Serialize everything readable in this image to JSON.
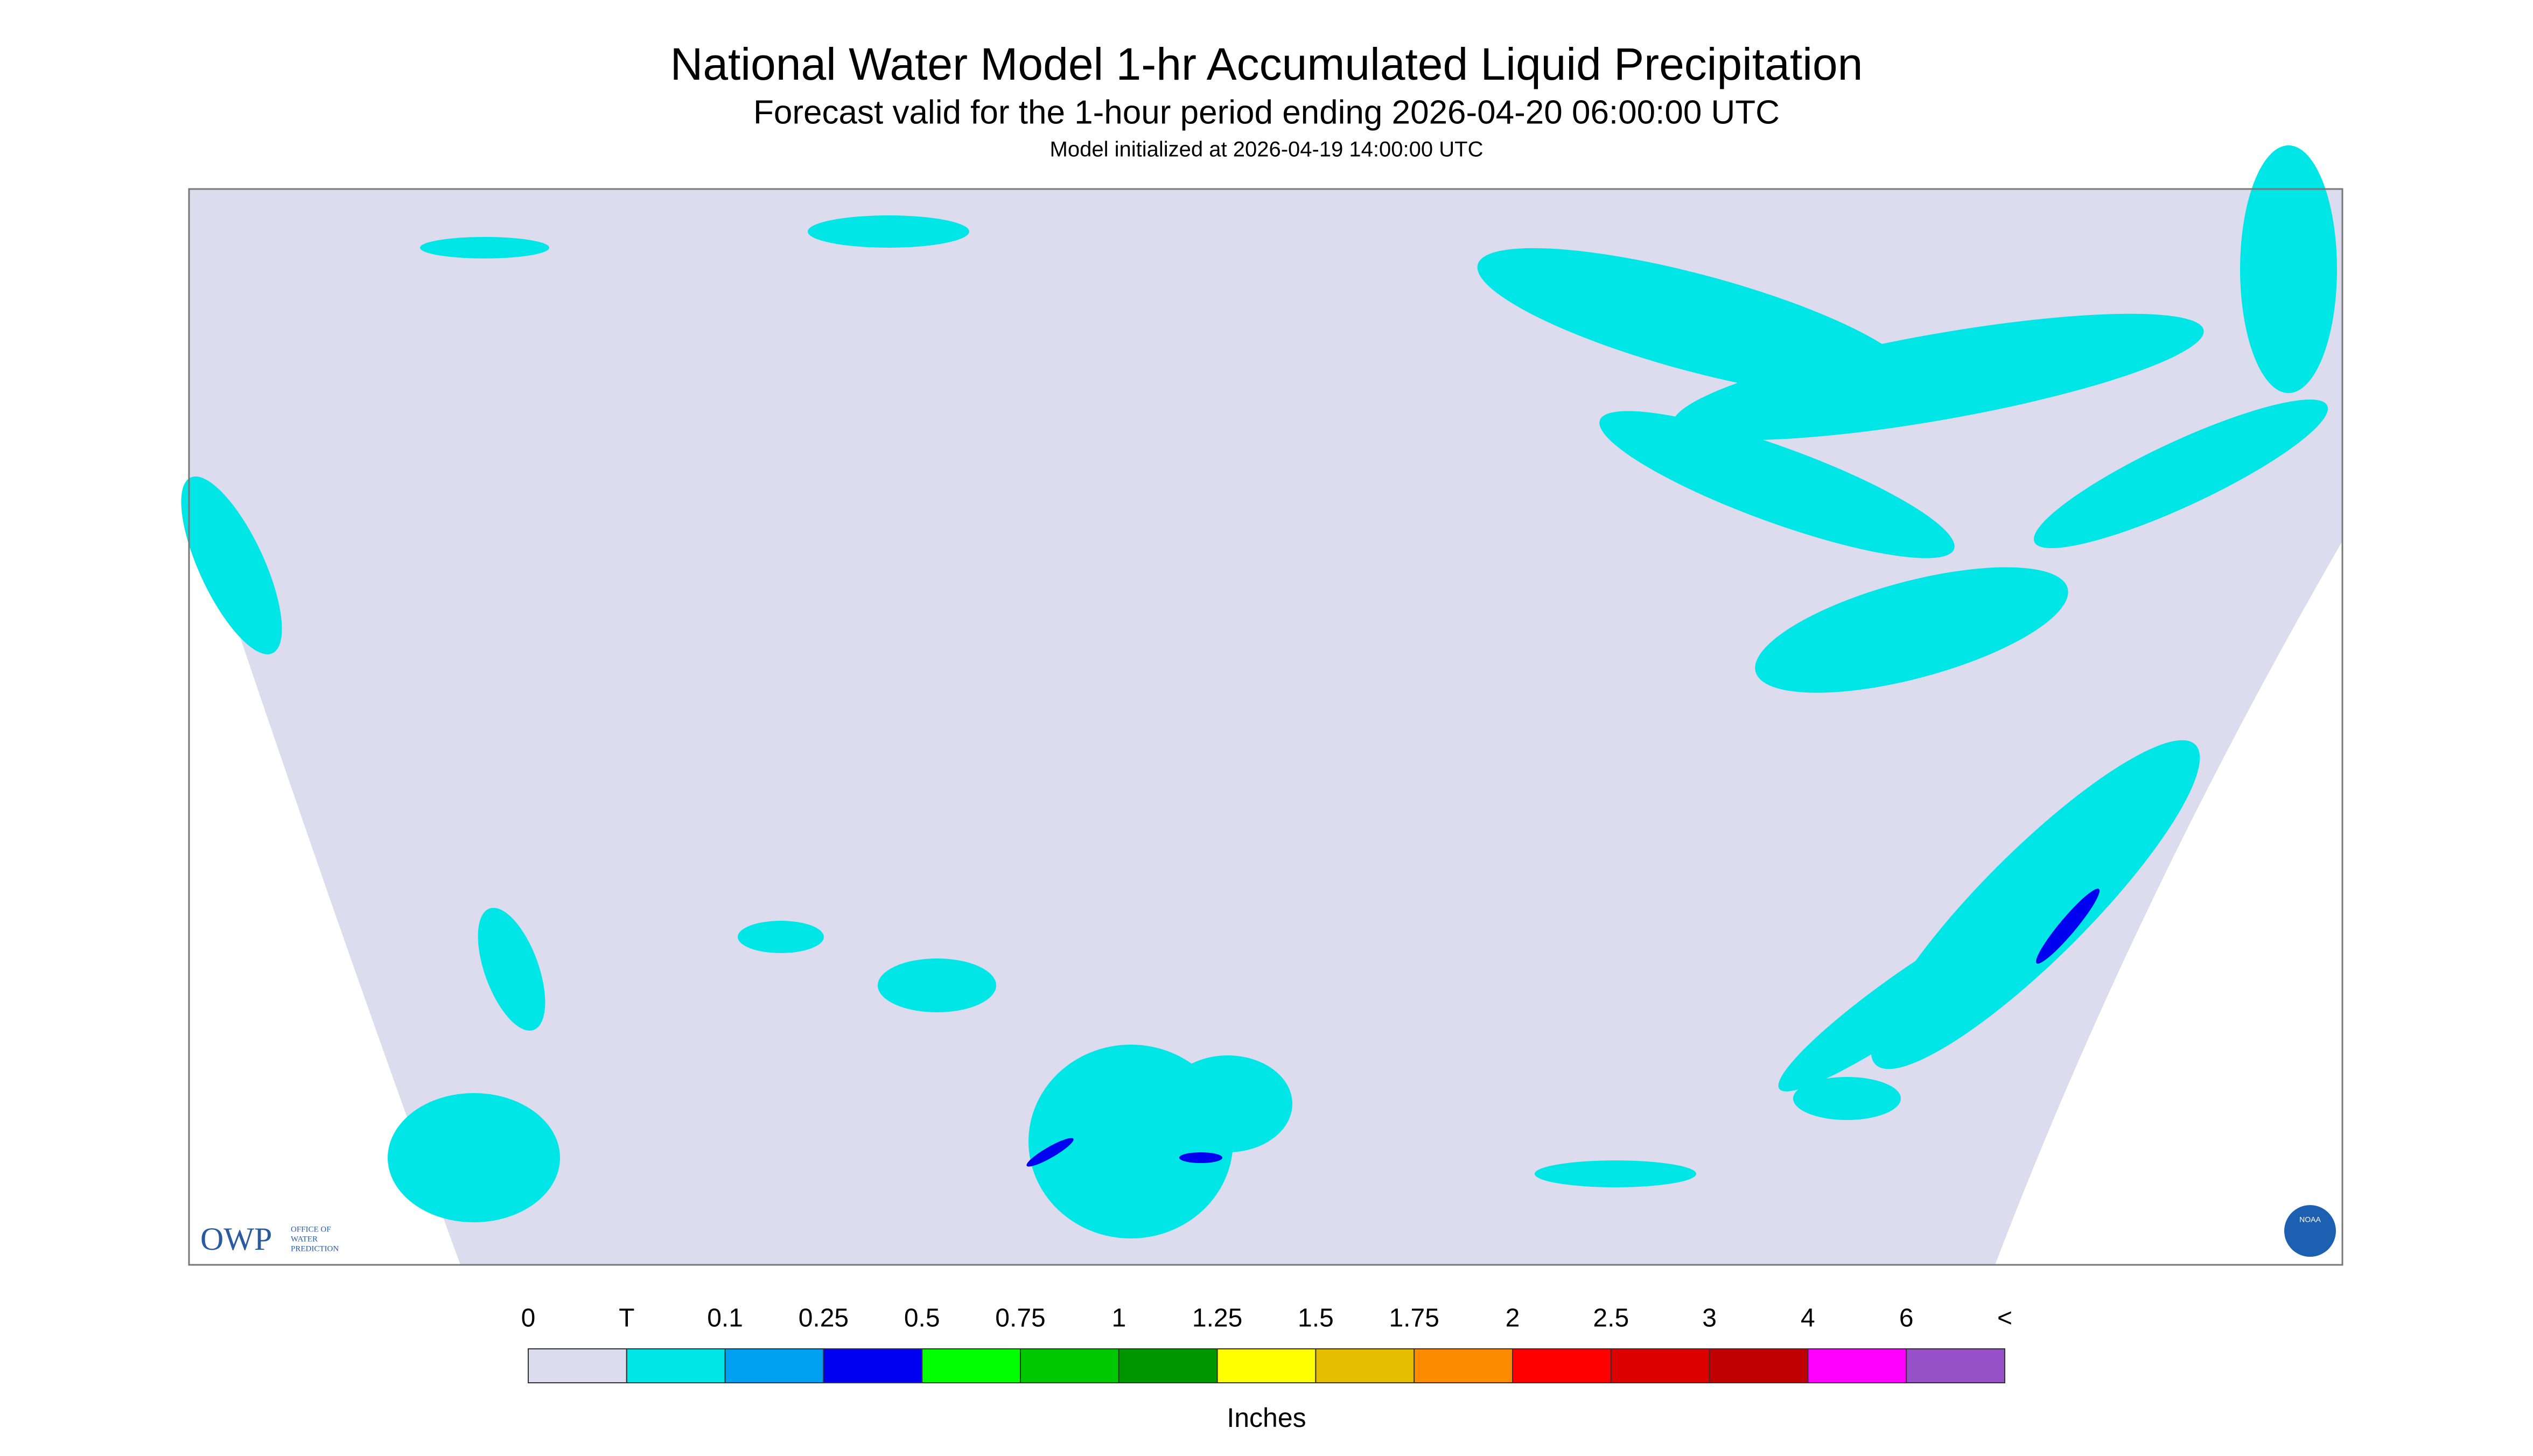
{
  "header": {
    "title": "National Water Model 1-hr Accumulated Liquid Precipitation",
    "subtitle": "Forecast valid for the 1-hour period ending 2026-04-20 06:00:00 UTC",
    "initialized": "Model initialized at 2026-04-19 14:00:00 UTC"
  },
  "legend": {
    "labels": [
      "0",
      "T",
      "0.1",
      "0.25",
      "0.5",
      "0.75",
      "1",
      "1.25",
      "1.5",
      "1.75",
      "2",
      "2.5",
      "3",
      "4",
      "6",
      "<"
    ],
    "colors": [
      "#dcdcee",
      "#00e6e6",
      "#00a0f0",
      "#0000f0",
      "#00ff00",
      "#00c800",
      "#009600",
      "#ffff00",
      "#e6be00",
      "#ff8c00",
      "#ff0000",
      "#dc0000",
      "#c00000",
      "#ff00ff",
      "#9650c8"
    ],
    "units": "Inches"
  },
  "logos": {
    "owp": "OWP",
    "owp_lines": [
      "OFFICE OF",
      "WATER",
      "PREDICTION"
    ],
    "noaa": "NOAA"
  }
}
